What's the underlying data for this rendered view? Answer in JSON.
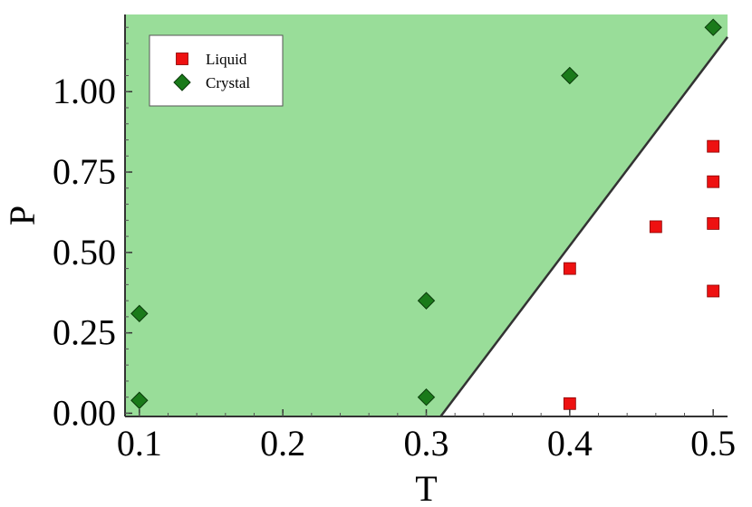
{
  "chart_data": {
    "type": "scatter",
    "title": "",
    "xlabel": "T",
    "ylabel": "P",
    "xlim": [
      0.09,
      0.51
    ],
    "ylim": [
      -0.01,
      1.24
    ],
    "x_ticks": [
      0.1,
      0.2,
      0.3,
      0.4,
      0.5
    ],
    "x_tick_labels": [
      "0.1",
      "0.2",
      "0.3",
      "0.4",
      "0.5"
    ],
    "y_ticks": [
      0.0,
      0.25,
      0.5,
      0.75,
      1.0
    ],
    "y_tick_labels": [
      "0.00",
      "0.25",
      "0.50",
      "0.75",
      "1.00"
    ],
    "grid": false,
    "legend_position": "top-left",
    "region": {
      "description_label": "",
      "fill_color": "#99dd99",
      "boundary_color": "#333333",
      "boundary_line": [
        [
          0.31,
          -0.01
        ],
        [
          0.51,
          1.17
        ]
      ]
    },
    "series": [
      {
        "name": "Liquid",
        "marker": "square",
        "color": "#ee1111",
        "points": [
          {
            "x": 0.4,
            "y": 0.03
          },
          {
            "x": 0.4,
            "y": 0.45
          },
          {
            "x": 0.46,
            "y": 0.58
          },
          {
            "x": 0.5,
            "y": 0.38
          },
          {
            "x": 0.5,
            "y": 0.59
          },
          {
            "x": 0.5,
            "y": 0.72
          },
          {
            "x": 0.5,
            "y": 0.83
          }
        ]
      },
      {
        "name": "Crystal",
        "marker": "diamond",
        "color": "#1a7a1a",
        "points": [
          {
            "x": 0.1,
            "y": 0.04
          },
          {
            "x": 0.1,
            "y": 0.31
          },
          {
            "x": 0.3,
            "y": 0.05
          },
          {
            "x": 0.3,
            "y": 0.35
          },
          {
            "x": 0.4,
            "y": 1.05
          },
          {
            "x": 0.5,
            "y": 1.2
          }
        ]
      }
    ]
  }
}
